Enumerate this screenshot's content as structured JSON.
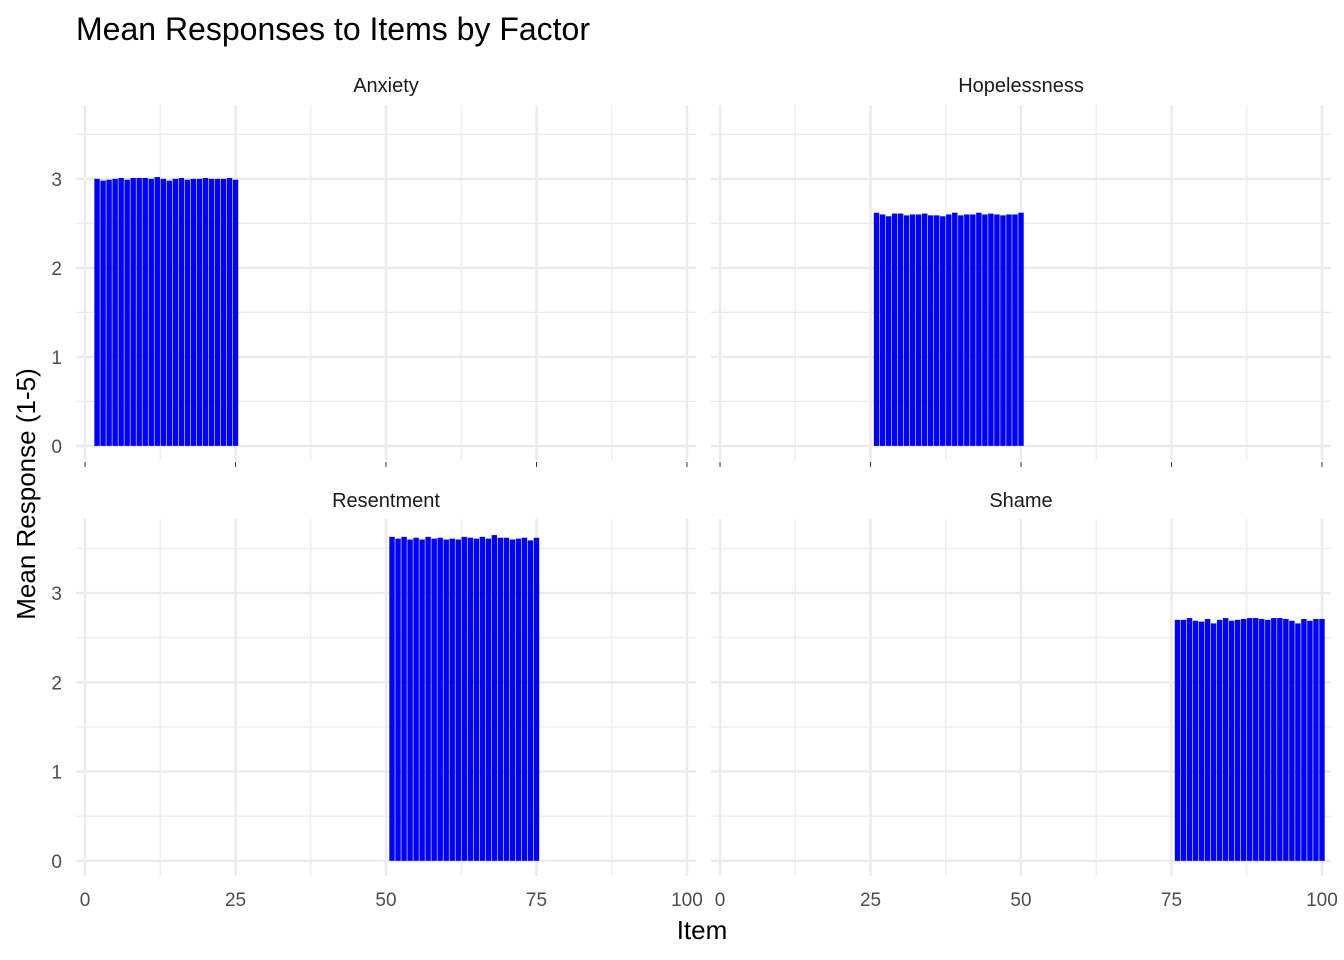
{
  "chart_data": {
    "type": "bar",
    "title": "Mean Responses to Items by Factor",
    "xlabel": "Item",
    "ylabel": "Mean Response (1-5)",
    "xlim": [
      0,
      100
    ],
    "ylim": [
      0,
      3.6
    ],
    "x_ticks": [
      0,
      25,
      50,
      75,
      100
    ],
    "y_ticks": [
      0,
      1,
      2,
      3
    ],
    "bar_color": "#0000FF",
    "grid": true,
    "facets": [
      {
        "name": "Anxiety",
        "items": [
          2,
          3,
          4,
          5,
          6,
          7,
          8,
          9,
          10,
          11,
          12,
          13,
          14,
          15,
          16,
          17,
          18,
          19,
          20,
          21,
          22,
          23,
          24,
          25
        ],
        "values": [
          3.0,
          2.98,
          2.99,
          3.0,
          3.01,
          2.99,
          3.01,
          3.01,
          3.01,
          3.0,
          3.02,
          3.0,
          2.98,
          3.0,
          3.01,
          2.99,
          3.0,
          3.0,
          3.01,
          3.0,
          3.0,
          3.0,
          3.01,
          2.99
        ]
      },
      {
        "name": "Hopelessness",
        "items": [
          26,
          27,
          28,
          29,
          30,
          31,
          32,
          33,
          34,
          35,
          36,
          37,
          38,
          39,
          40,
          41,
          42,
          43,
          44,
          45,
          46,
          47,
          48,
          49,
          50
        ],
        "values": [
          2.62,
          2.6,
          2.58,
          2.61,
          2.61,
          2.59,
          2.6,
          2.6,
          2.61,
          2.59,
          2.59,
          2.58,
          2.6,
          2.62,
          2.59,
          2.6,
          2.6,
          2.62,
          2.6,
          2.61,
          2.6,
          2.59,
          2.6,
          2.6,
          2.62
        ]
      },
      {
        "name": "Resentment",
        "items": [
          51,
          52,
          53,
          54,
          55,
          56,
          57,
          58,
          59,
          60,
          61,
          62,
          63,
          64,
          65,
          66,
          67,
          68,
          69,
          70,
          71,
          72,
          73,
          74,
          75
        ],
        "values": [
          3.63,
          3.61,
          3.63,
          3.6,
          3.62,
          3.6,
          3.63,
          3.61,
          3.62,
          3.6,
          3.61,
          3.6,
          3.63,
          3.62,
          3.61,
          3.63,
          3.61,
          3.65,
          3.62,
          3.62,
          3.6,
          3.61,
          3.62,
          3.59,
          3.62
        ]
      },
      {
        "name": "Shame",
        "items": [
          76,
          77,
          78,
          79,
          80,
          81,
          82,
          83,
          84,
          85,
          86,
          87,
          88,
          89,
          90,
          91,
          92,
          93,
          94,
          95,
          96,
          97,
          98,
          99,
          100
        ],
        "values": [
          2.7,
          2.7,
          2.72,
          2.69,
          2.68,
          2.71,
          2.66,
          2.7,
          2.72,
          2.69,
          2.7,
          2.71,
          2.72,
          2.72,
          2.71,
          2.7,
          2.72,
          2.72,
          2.71,
          2.69,
          2.66,
          2.71,
          2.69,
          2.71,
          2.71
        ]
      }
    ]
  }
}
